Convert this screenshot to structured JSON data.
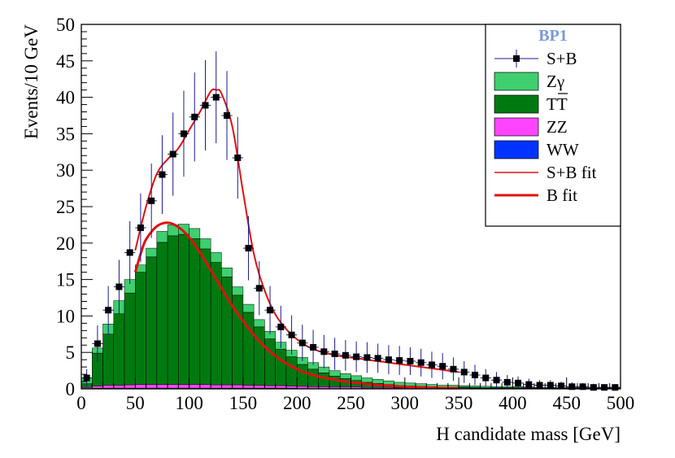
{
  "chart_data": {
    "type": "bar",
    "title": "",
    "xlabel": "H candidate mass [GeV]",
    "ylabel": "Events/10 GeV",
    "xlim": [
      0,
      500
    ],
    "ylim": [
      0,
      50
    ],
    "bin_width": 10,
    "x_ticks": [
      0,
      50,
      100,
      150,
      200,
      250,
      300,
      350,
      400,
      450,
      500
    ],
    "y_ticks": [
      0,
      5,
      10,
      15,
      20,
      25,
      30,
      35,
      40,
      45,
      50
    ],
    "legend": {
      "title": "BP1",
      "position": "top-right",
      "entries": [
        {
          "key": "sb",
          "label": "S+B"
        },
        {
          "key": "zgamma",
          "label": "Zγ"
        },
        {
          "key": "ttbar",
          "label": "TT"
        },
        {
          "key": "zz",
          "label": "ZZ"
        },
        {
          "key": "ww",
          "label": "WW"
        },
        {
          "key": "sbfit",
          "label": "S+B fit"
        },
        {
          "key": "bfit",
          "label": "B fit"
        }
      ]
    },
    "colors": {
      "zgamma": "#3fcf6e",
      "ttbar": "#007a10",
      "zz": "#ff44ff",
      "ww": "#0033ff",
      "data": "#000000",
      "error_bar": "#1a1a8c",
      "fit": "#e01010",
      "legend_title": "#7a9ad6"
    },
    "stack": {
      "bin_low_edges": [
        0,
        10,
        20,
        30,
        40,
        50,
        60,
        70,
        80,
        90,
        100,
        110,
        120,
        130,
        140,
        150,
        160,
        170,
        180,
        190,
        200,
        210,
        220,
        230,
        240,
        250,
        260,
        270,
        280,
        290,
        300,
        310,
        320,
        330,
        340,
        350,
        360,
        370,
        380,
        390,
        400,
        410,
        420,
        430,
        440,
        450,
        460,
        470,
        480,
        490
      ],
      "ww": [
        0.05,
        0.1,
        0.1,
        0.1,
        0.1,
        0.1,
        0.1,
        0.1,
        0.1,
        0.1,
        0.1,
        0.1,
        0.1,
        0.1,
        0.1,
        0.1,
        0.1,
        0.1,
        0.1,
        0.1,
        0.05,
        0.05,
        0.05,
        0.05,
        0.05,
        0.05,
        0.05,
        0.05,
        0.05,
        0.05,
        0.05,
        0.05,
        0.05,
        0.05,
        0.05,
        0.05,
        0.05,
        0.05,
        0.05,
        0.05,
        0.05,
        0.05,
        0.05,
        0.05,
        0.05,
        0.05,
        0.05,
        0.05,
        0.05,
        0.05
      ],
      "zz": [
        0.15,
        0.3,
        0.4,
        0.4,
        0.45,
        0.5,
        0.5,
        0.5,
        0.5,
        0.5,
        0.5,
        0.5,
        0.45,
        0.45,
        0.45,
        0.4,
        0.4,
        0.35,
        0.35,
        0.3,
        0.3,
        0.25,
        0.25,
        0.2,
        0.2,
        0.2,
        0.15,
        0.15,
        0.15,
        0.1,
        0.1,
        0.1,
        0.1,
        0.1,
        0.1,
        0.1,
        0.05,
        0.05,
        0.05,
        0.05,
        0.05,
        0.05,
        0.05,
        0.05,
        0.05,
        0.05,
        0.05,
        0.05,
        0.05,
        0.05
      ],
      "ttbar": [
        0.5,
        4.5,
        7.0,
        9.8,
        12.6,
        15.4,
        17.5,
        19.5,
        20.4,
        20.6,
        20.0,
        18.6,
        16.8,
        14.8,
        12.3,
        10.0,
        8.0,
        6.4,
        5.0,
        4.0,
        3.0,
        2.4,
        1.9,
        1.5,
        1.15,
        0.9,
        0.7,
        0.55,
        0.4,
        0.3,
        0.25,
        0.2,
        0.15,
        0.1,
        0.1,
        0.1,
        0.1,
        0.05,
        0.05,
        0.05,
        0.05,
        0.05,
        0.0,
        0.0,
        0.0,
        0.0,
        0.0,
        0.0,
        0.0,
        0.0
      ],
      "zgamma": [
        0.8,
        0.7,
        1.4,
        1.8,
        1.85,
        1.0,
        1.2,
        1.5,
        1.5,
        1.4,
        1.4,
        1.4,
        1.35,
        1.25,
        1.15,
        1.1,
        1.0,
        1.05,
        0.95,
        0.9,
        0.95,
        0.9,
        0.8,
        0.75,
        0.7,
        0.65,
        0.6,
        0.55,
        0.5,
        0.45,
        0.4,
        0.35,
        0.3,
        0.25,
        0.25,
        0.2,
        0.2,
        0.2,
        0.15,
        0.15,
        0.15,
        0.1,
        0.1,
        0.1,
        0.1,
        0.1,
        0.1,
        0.1,
        0.05,
        0.05
      ]
    },
    "series_sb": {
      "name": "S+B",
      "x": [
        5,
        15,
        25,
        35,
        45,
        55,
        65,
        75,
        85,
        95,
        105,
        115,
        125,
        135,
        145,
        155,
        165,
        175,
        185,
        195,
        205,
        215,
        225,
        235,
        245,
        255,
        265,
        275,
        285,
        295,
        305,
        315,
        325,
        335,
        345,
        355,
        365,
        375,
        385,
        395,
        405,
        415,
        425,
        435,
        445,
        455,
        465,
        475,
        485,
        495
      ],
      "y": [
        1.5,
        6.2,
        10.8,
        14.0,
        18.7,
        22.1,
        25.8,
        29.4,
        32.2,
        35.0,
        37.3,
        38.9,
        40.0,
        37.5,
        31.7,
        19.3,
        13.8,
        10.8,
        8.5,
        7.4,
        6.3,
        5.7,
        5.1,
        4.8,
        4.6,
        4.4,
        4.3,
        4.2,
        4.0,
        3.9,
        3.8,
        3.6,
        3.3,
        3.1,
        2.7,
        2.3,
        1.9,
        1.5,
        1.2,
        0.9,
        0.8,
        0.6,
        0.5,
        0.5,
        0.4,
        0.3,
        0.3,
        0.2,
        0.2,
        0.2
      ],
      "err": [
        1.2,
        2.5,
        3.3,
        3.7,
        4.3,
        4.7,
        5.1,
        5.4,
        5.7,
        5.9,
        6.1,
        6.2,
        6.3,
        6.1,
        5.6,
        4.4,
        3.7,
        3.3,
        2.9,
        2.7,
        2.5,
        2.4,
        2.3,
        2.2,
        2.1,
        2.1,
        2.1,
        2.0,
        2.0,
        2.0,
        1.9,
        1.9,
        1.8,
        1.8,
        1.6,
        1.5,
        1.4,
        1.2,
        1.1,
        1.0,
        0.9,
        0.8,
        0.7,
        0.7,
        0.6,
        0.6,
        0.5,
        0.5,
        0.4,
        0.4
      ]
    },
    "sb_fit": {
      "name": "S+B fit",
      "x": [
        50,
        60,
        70,
        80,
        90,
        100,
        110,
        120,
        125,
        130,
        140,
        150,
        160,
        170,
        180,
        190,
        200,
        210,
        220,
        230,
        240,
        250,
        260,
        270,
        280,
        290,
        300,
        310,
        320,
        330,
        340,
        350
      ],
      "y": [
        19.0,
        25.0,
        29.5,
        31.5,
        33.0,
        35.5,
        38.0,
        40.8,
        41.0,
        40.5,
        36.0,
        27.0,
        18.5,
        13.5,
        10.2,
        8.2,
        6.8,
        5.8,
        5.2,
        4.8,
        4.5,
        4.3,
        4.1,
        3.9,
        3.7,
        3.5,
        3.3,
        3.1,
        2.9,
        2.7,
        2.5,
        2.3
      ]
    },
    "b_fit": {
      "name": "B fit",
      "x": [
        50,
        55,
        60,
        70,
        80,
        90,
        100,
        110,
        120,
        130,
        140,
        150,
        160,
        170,
        180,
        190,
        200,
        210,
        220,
        230,
        240,
        250,
        260,
        270,
        280,
        290,
        300,
        310,
        320,
        330,
        340,
        350
      ],
      "y": [
        16.0,
        18.5,
        20.5,
        22.3,
        22.8,
        22.2,
        20.8,
        18.7,
        16.3,
        13.8,
        11.4,
        9.3,
        7.4,
        5.8,
        4.5,
        3.5,
        2.7,
        2.1,
        1.7,
        1.4,
        1.1,
        0.9,
        0.75,
        0.6,
        0.5,
        0.4,
        0.3,
        0.25,
        0.2,
        0.15,
        0.1,
        0.1
      ]
    }
  }
}
